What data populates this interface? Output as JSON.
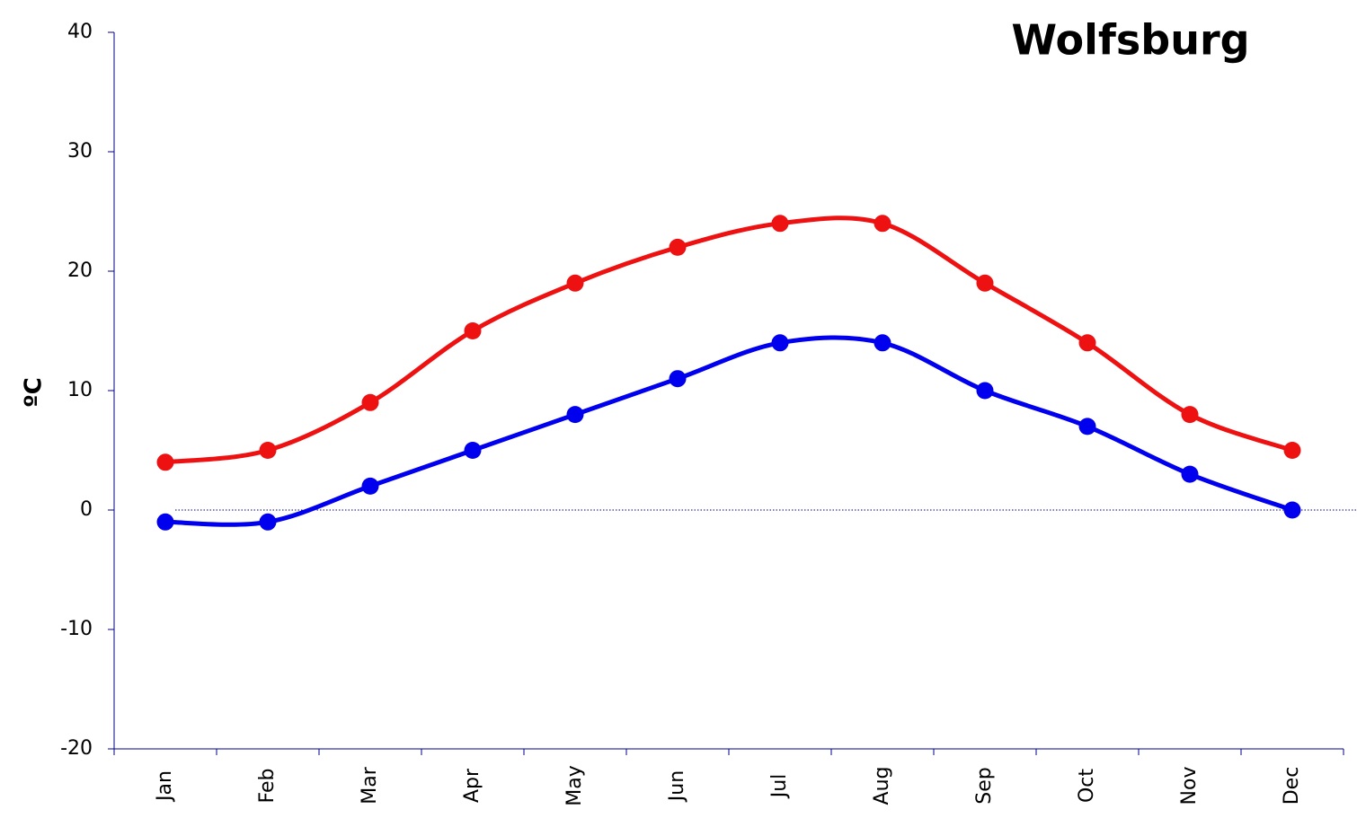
{
  "chart_data": {
    "type": "line",
    "title": "Wolfsburg",
    "y_label": "ºC",
    "categories": [
      "Jan",
      "Feb",
      "Mar",
      "Apr",
      "May",
      "Jun",
      "Jul",
      "Aug",
      "Sep",
      "Oct",
      "Nov",
      "Dec"
    ],
    "series": [
      {
        "color": "#ee1111",
        "values": [
          4,
          5,
          9,
          15,
          19,
          22,
          24,
          24,
          19,
          14,
          8,
          5
        ]
      },
      {
        "color": "#0000ee",
        "values": [
          -1,
          -1,
          2,
          5,
          8,
          11,
          14,
          14,
          10,
          7,
          3,
          0
        ]
      }
    ],
    "ylim": [
      -20,
      40
    ],
    "yticks": [
      -20,
      -10,
      0,
      10,
      20,
      30,
      40
    ],
    "smooth": true,
    "grid": false
  }
}
